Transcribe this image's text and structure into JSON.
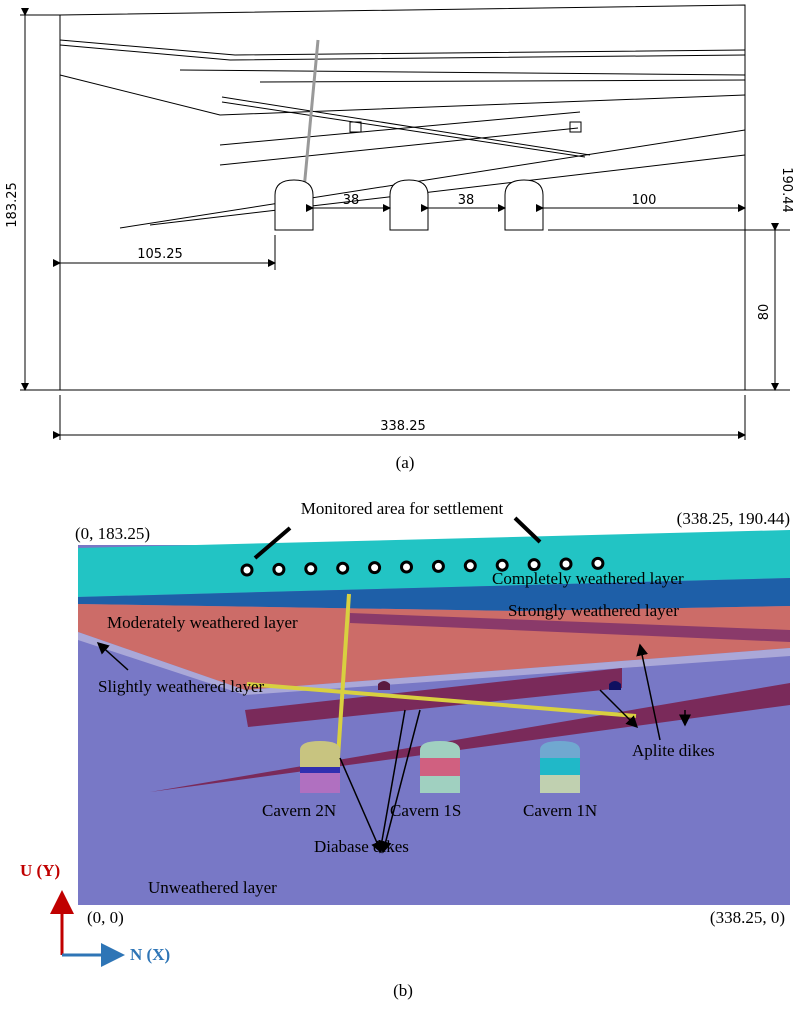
{
  "panel_a": {
    "label": "(a)",
    "dimensions": {
      "height_left": "183.25",
      "height_right": "190.44",
      "spacing_1": "38",
      "spacing_2": "38",
      "right_offset": "100",
      "left_offset": "105.25",
      "cavern_depth": "80",
      "width": "338.25"
    }
  },
  "panel_b": {
    "label": "(b)",
    "monitor_label": "Monitored area for settlement",
    "corners": {
      "top_left": "(0, 183.25)",
      "top_right": "(338.25, 190.44)",
      "bottom_left": "(0, 0)",
      "bottom_right": "(338.25, 0)"
    },
    "layers": {
      "completely": "Completely weathered layer",
      "strongly": "Strongly weathered layer",
      "moderately": "Moderately weathered layer",
      "slightly": "Slightly weathered layer",
      "unweathered": "Unweathered layer"
    },
    "dikes": {
      "aplite": "Aplite dikes",
      "diabase": "Diabase dikes"
    },
    "caverns": [
      "Cavern 2N",
      "Cavern 1S",
      "Cavern 1N"
    ],
    "axes": {
      "vertical": "U (Y)",
      "horizontal": "N (X)"
    }
  }
}
